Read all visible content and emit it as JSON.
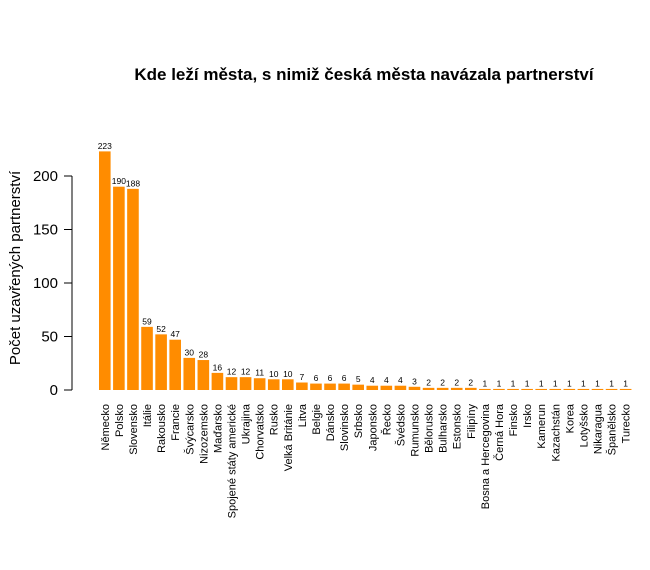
{
  "chart_data": {
    "type": "bar",
    "title": "Kde leží města, s nimiž česká města navázala partnerství",
    "xlabel": "",
    "ylabel": "Počet uzavřených partnerství",
    "ylim": [
      0,
      230
    ],
    "yticks": [
      0,
      50,
      100,
      150,
      200
    ],
    "grid": false,
    "bar_color": "#ff8c00",
    "categories": [
      "Německo",
      "Polsko",
      "Slovensko",
      "Itálie",
      "Rakousko",
      "Francie",
      "Švýcarsko",
      "Nizozemsko",
      "Maďarsko",
      "Spojené státy americké",
      "Ukrajina",
      "Chorvatsko",
      "Rusko",
      "Velká Británie",
      "Litva",
      "Belgie",
      "Dánsko",
      "Slovinsko",
      "Srbsko",
      "Japonsko",
      "Řecko",
      "Švédsko",
      "Rumunsko",
      "Bělorusko",
      "Bulharsko",
      "Estonsko",
      "Filipíny",
      "Bosna a Hercegovina",
      "Černá Hora",
      "Finsko",
      "Irsko",
      "Kamerun",
      "Kazachstán",
      "Korea",
      "Lotyšsko",
      "Nikaragua",
      "Španělsko",
      "Turecko"
    ],
    "values": [
      223,
      190,
      188,
      59,
      52,
      47,
      30,
      28,
      16,
      12,
      12,
      11,
      10,
      10,
      7,
      6,
      6,
      6,
      5,
      4,
      4,
      4,
      3,
      2,
      2,
      2,
      2,
      1,
      1,
      1,
      1,
      1,
      1,
      1,
      1,
      1,
      1,
      1
    ]
  }
}
